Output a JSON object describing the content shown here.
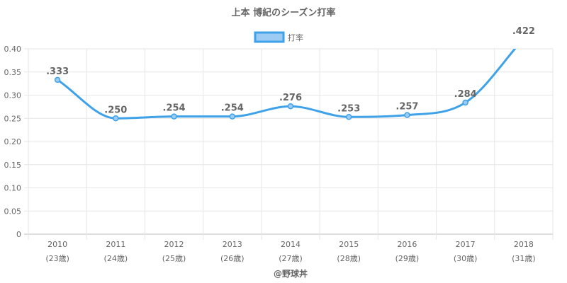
{
  "chart_data": {
    "type": "line",
    "title": "上本 博紀のシーズン打率",
    "credit": "@野球丼",
    "legend": {
      "position": "top",
      "label": "打率",
      "color": "#3fa2e8",
      "fill": "#9ccbf3"
    },
    "categories": [
      "2010",
      "2011",
      "2012",
      "2013",
      "2014",
      "2015",
      "2016",
      "2017",
      "2018"
    ],
    "category_sublabels": [
      "(23歳)",
      "(24歳)",
      "(25歳)",
      "(26歳)",
      "(27歳)",
      "(28歳)",
      "(29歳)",
      "(30歳)",
      "(31歳)"
    ],
    "series": [
      {
        "name": "打率",
        "values": [
          0.333,
          0.25,
          0.254,
          0.254,
          0.276,
          0.253,
          0.257,
          0.284,
          0.422
        ],
        "data_labels": [
          ".333",
          ".250",
          ".254",
          ".254",
          ".276",
          ".253",
          ".257",
          ".284",
          ".422"
        ],
        "color": "#3fa2e8"
      }
    ],
    "ylim": [
      0,
      0.4
    ],
    "yticks": [
      0,
      0.05,
      0.1,
      0.15,
      0.2,
      0.25,
      0.3,
      0.35,
      0.4
    ],
    "ytick_labels": [
      "0",
      "0.05",
      "0.10",
      "0.15",
      "0.20",
      "0.25",
      "0.30",
      "0.35",
      "0.40"
    ],
    "grid": true,
    "xlabel": "",
    "ylabel": ""
  }
}
